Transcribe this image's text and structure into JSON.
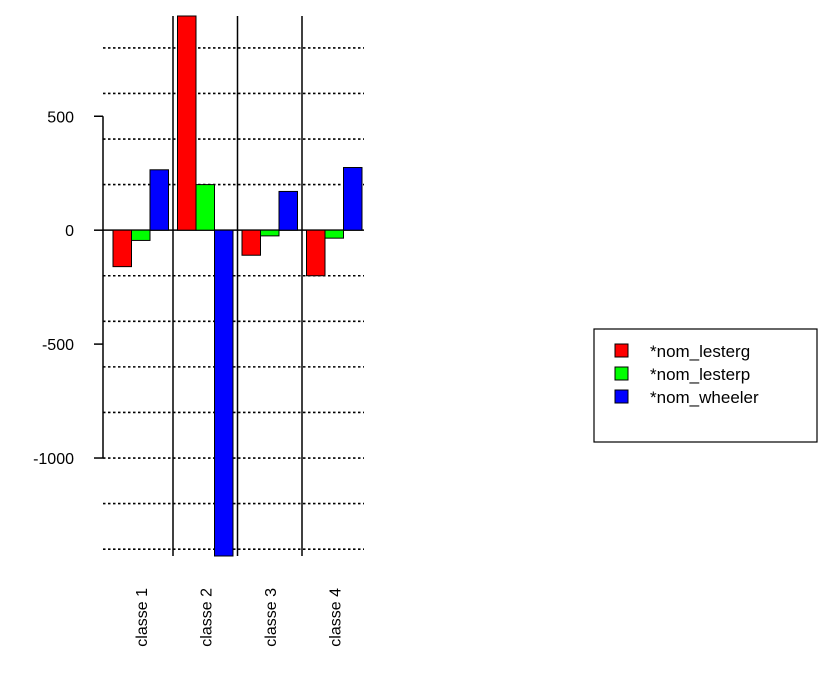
{
  "chart_data": {
    "type": "bar",
    "categories": [
      "classe 1",
      "classe 2",
      "classe 3",
      "classe 4"
    ],
    "series": [
      {
        "name": "*nom_lesterg",
        "color": "#ff0000",
        "values": [
          -160,
          940,
          -110,
          -200
        ]
      },
      {
        "name": "*nom_lesterp",
        "color": "#00ff00",
        "values": [
          -45,
          200,
          -25,
          -35
        ]
      },
      {
        "name": "*nom_wheeler",
        "color": "#0000ff",
        "values": [
          265,
          -1430,
          170,
          275
        ]
      }
    ],
    "yticks": [
      -1000,
      -500,
      0,
      500
    ],
    "ylim": [
      -1430,
      940
    ],
    "grid_lines": [
      -1400,
      -1200,
      -1000,
      -800,
      -600,
      -400,
      -200,
      0,
      200,
      400,
      600,
      800
    ],
    "grid": true,
    "legend_position": "right"
  }
}
